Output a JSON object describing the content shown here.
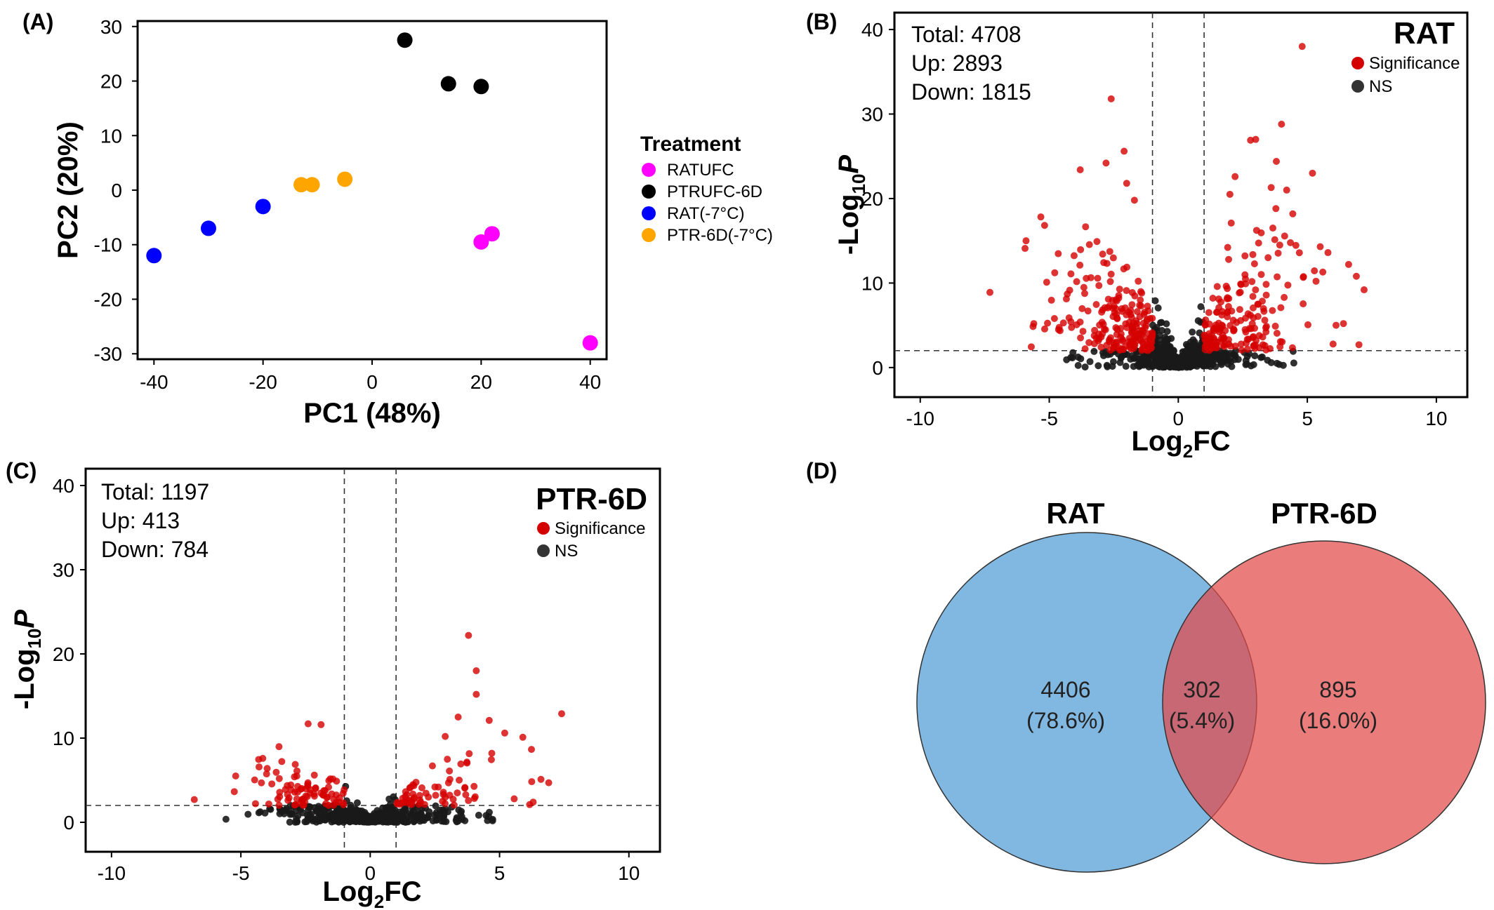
{
  "colors": {
    "ratufc": "#ff00ff",
    "ptrufc": "#000000",
    "rat_cold": "#0000ff",
    "ptr_cold": "#ffa500",
    "significance": "#d40000",
    "ns": "#1a1a1a",
    "venn_rat": "#4a9ad4",
    "venn_ptr": "#e24a4a"
  },
  "chart_data": [
    {
      "panel": "(A)",
      "type": "scatter",
      "xlabel": "PC1 (48%)",
      "ylabel": "PC2 (20%)",
      "xlim": [
        -43,
        43
      ],
      "ylim": [
        -31,
        31
      ],
      "x_ticks": [
        -40,
        -20,
        0,
        20,
        40
      ],
      "y_ticks": [
        -30,
        -20,
        -10,
        0,
        10,
        20,
        30
      ],
      "grid": false,
      "legend_position": "right",
      "legend_title": "Treatment",
      "series": [
        {
          "name": "RATUFC",
          "color": "#ff00ff",
          "points": [
            [
              20,
              -9.5
            ],
            [
              22,
              -8
            ],
            [
              40,
              -28
            ]
          ]
        },
        {
          "name": "PTRUFC-6D",
          "color": "#000000",
          "points": [
            [
              6,
              27.5
            ],
            [
              14,
              19.5
            ],
            [
              20,
              19
            ]
          ]
        },
        {
          "name": "RAT(-7°C)",
          "color": "#0000ff",
          "points": [
            [
              -40,
              -12
            ],
            [
              -30,
              -7
            ],
            [
              -20,
              -3
            ]
          ]
        },
        {
          "name": "PTR-6D(-7°C)",
          "color": "#ffa500",
          "points": [
            [
              -13,
              1
            ],
            [
              -11,
              1
            ],
            [
              -5,
              2
            ]
          ]
        }
      ]
    },
    {
      "panel": "(B)",
      "type": "scatter",
      "title": "RAT",
      "xlabel": "Log2FC",
      "ylabel": "-Log10P",
      "xlim": [
        -11,
        11.2
      ],
      "ylim": [
        -3.5,
        42
      ],
      "x_ticks": [
        -10,
        -5,
        0,
        5,
        10
      ],
      "y_ticks": [
        0,
        10,
        20,
        30,
        40
      ],
      "fc_threshold": 1,
      "p_threshold": 2,
      "stats": {
        "total": "Total: 4708",
        "up": "Up: 2893",
        "down": "Down: 1815"
      },
      "legend": [
        "Significance",
        "NS"
      ],
      "legend_position": "top-right",
      "outlier_points": [
        [
          4.8,
          38
        ],
        [
          -2.6,
          31.8
        ],
        [
          3,
          27
        ],
        [
          4,
          28.8
        ],
        [
          -2.1,
          25.6
        ],
        [
          -2.8,
          24.2
        ],
        [
          3.8,
          24.4
        ],
        [
          -2,
          21.8
        ],
        [
          2.2,
          22.6
        ],
        [
          3.6,
          21.3
        ],
        [
          4.2,
          21
        ],
        [
          5.2,
          23
        ],
        [
          -1.7,
          19.8
        ],
        [
          2,
          20.5
        ],
        [
          -5.9,
          15
        ],
        [
          -7.3,
          8.9
        ],
        [
          -5.1,
          10.1
        ],
        [
          -4.3,
          8.7
        ],
        [
          6.6,
          12.2
        ],
        [
          7.2,
          9.2
        ],
        [
          6.9,
          10.8
        ],
        [
          5.6,
          11.3
        ],
        [
          -5.6,
          5.2
        ],
        [
          -4.8,
          5.8
        ],
        [
          6.4,
          5.2
        ],
        [
          7,
          2.7
        ],
        [
          5.5,
          14.3
        ],
        [
          5.8,
          13.6
        ],
        [
          2.8,
          26.9
        ],
        [
          -3.8,
          23.4
        ]
      ],
      "bulk_point_count_shown": 900
    },
    {
      "panel": "(C)",
      "type": "scatter",
      "title": "PTR-6D",
      "xlabel": "Log2FC",
      "ylabel": "-Log10P",
      "xlim": [
        -11,
        11.2
      ],
      "ylim": [
        -3.5,
        42
      ],
      "x_ticks": [
        -10,
        -5,
        0,
        5,
        10
      ],
      "y_ticks": [
        0,
        10,
        20,
        30,
        40
      ],
      "fc_threshold": 1,
      "p_threshold": 2,
      "stats": {
        "total": "Total: 1197",
        "up": "Up: 413",
        "down": "Down: 784"
      },
      "legend": [
        "Significance",
        "NS"
      ],
      "legend_position": "top-right",
      "outlier_points": [
        [
          3.8,
          22.2
        ],
        [
          4.1,
          18
        ],
        [
          7.4,
          12.9
        ],
        [
          4.1,
          15.2
        ],
        [
          5.9,
          10.1
        ],
        [
          5.2,
          10.6
        ],
        [
          4.6,
          12.1
        ],
        [
          3.4,
          12.5
        ],
        [
          -2.4,
          11.7
        ],
        [
          -1.9,
          11.6
        ],
        [
          -5.2,
          5.5
        ],
        [
          -6.8,
          2.7
        ],
        [
          6.3,
          2.4
        ],
        [
          6.9,
          4.7
        ],
        [
          6.6,
          5.1
        ],
        [
          2.9,
          10.2
        ],
        [
          4.7,
          8.2
        ]
      ],
      "bulk_point_count_shown": 600
    },
    {
      "panel": "(D)",
      "type": "venn",
      "sets": [
        {
          "name": "RAT",
          "only": "4406",
          "only_pct": "(78.6%)",
          "color": "#4a9ad4"
        },
        {
          "name": "PTR-6D",
          "only": "895",
          "only_pct": "(16.0%)",
          "color": "#e24a4a"
        }
      ],
      "intersection": {
        "value": "302",
        "pct": "(5.4%)"
      }
    }
  ]
}
